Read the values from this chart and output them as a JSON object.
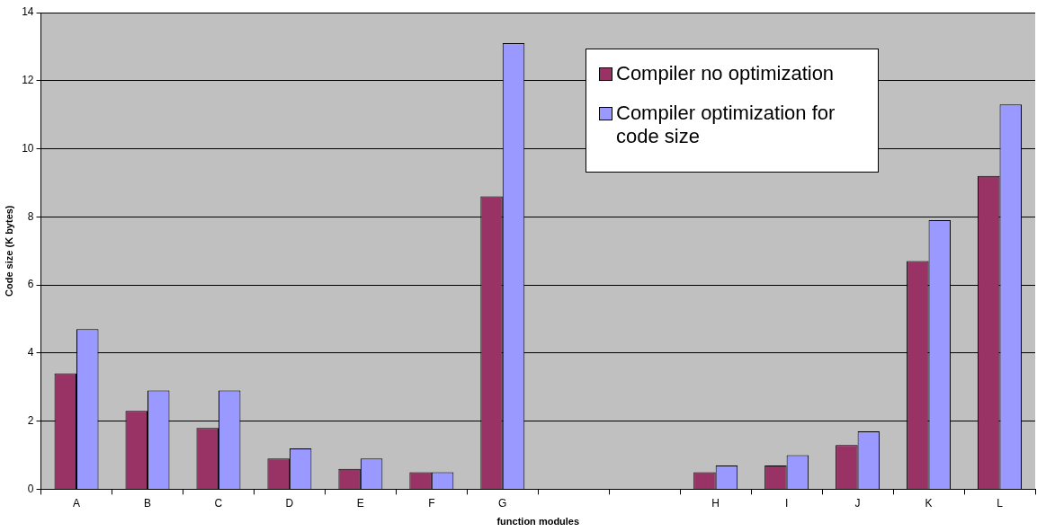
{
  "chart_data": {
    "type": "bar",
    "xlabel": "function modules",
    "ylabel": "Code size (K bytes)",
    "categories": [
      "A",
      "B",
      "C",
      "D",
      "E",
      "F",
      "G",
      null,
      null,
      "H",
      "I",
      "J",
      "K",
      "L"
    ],
    "series": [
      {
        "name": "Compiler no optimization",
        "color": "#993366",
        "values": [
          3.4,
          2.3,
          1.8,
          0.9,
          0.6,
          0.5,
          8.6,
          null,
          null,
          0.5,
          0.7,
          1.3,
          6.7,
          9.2
        ]
      },
      {
        "name": "Compiler optimization for code size",
        "color": "#9999ff",
        "values": [
          4.7,
          2.9,
          2.9,
          1.2,
          0.9,
          0.5,
          13.1,
          null,
          null,
          0.7,
          1.0,
          1.7,
          7.9,
          11.3
        ]
      }
    ],
    "ylim": [
      0,
      14
    ],
    "yticks": [
      0,
      2,
      4,
      6,
      8,
      10,
      12,
      14
    ],
    "grid": "y",
    "legend": "top right"
  }
}
